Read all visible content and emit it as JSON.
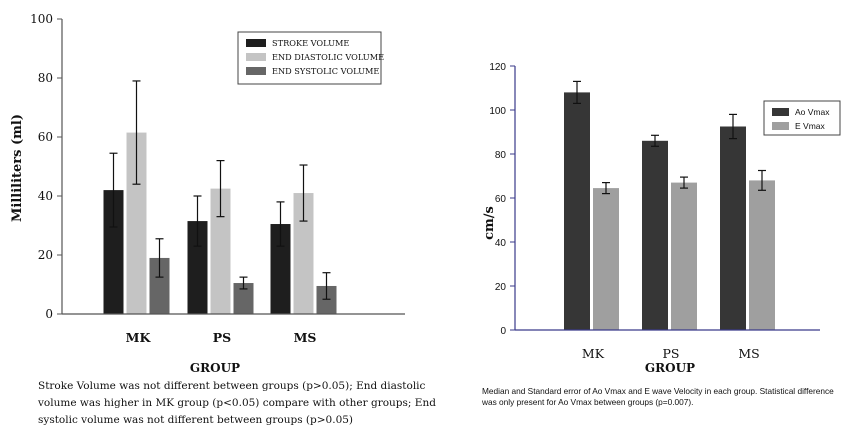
{
  "colors": {
    "stroke_volume": "#1e1e1e",
    "end_diastolic": "#c4c4c4",
    "end_systolic": "#666666",
    "ao_vmax": "#363636",
    "e_vmax": "#9f9f9f",
    "axis": "#555555",
    "axis_right": "#3a3a8a"
  },
  "captions": {
    "left": "Stroke Volume was not different between groups (p>0.05); End diastolic volume was higher in MK group (p<0.05) compare with other groups; End systolic volume was not different between groups (p>0.05)",
    "right": "Median and Standard error of Ao Vmax and E wave Velocity in each group. Statistical difference was only present for Ao Vmax between groups (p=0.007)."
  },
  "chart_data": [
    {
      "type": "bar",
      "title": "",
      "xlabel": "GROUP",
      "ylabel": "Milliliters (ml)",
      "ylim": [
        0,
        100
      ],
      "yticks": [
        0,
        20,
        40,
        60,
        80,
        100
      ],
      "categories": [
        "MK",
        "PS",
        "MS"
      ],
      "legend_position": "top-right",
      "grid": false,
      "series": [
        {
          "name": "STROKE VOLUME",
          "color_key": "stroke_volume",
          "values": [
            42,
            31.5,
            30.5
          ],
          "errors": [
            12.5,
            8.5,
            7.5
          ]
        },
        {
          "name": "END DIASTOLIC VOLUME",
          "color_key": "end_diastolic",
          "values": [
            61.5,
            42.5,
            41
          ],
          "errors": [
            17.5,
            9.5,
            9.5
          ]
        },
        {
          "name": "END SYSTOLIC VOLUME",
          "color_key": "end_systolic",
          "values": [
            19,
            10.5,
            9.5
          ],
          "errors": [
            6.5,
            2,
            4.5
          ]
        }
      ]
    },
    {
      "type": "bar",
      "title": "",
      "xlabel": "GROUP",
      "ylabel": "cm/s",
      "ylim": [
        0,
        120
      ],
      "yticks": [
        0,
        20,
        40,
        60,
        80,
        100,
        120
      ],
      "categories": [
        "MK",
        "PS",
        "MS"
      ],
      "legend_position": "top-right",
      "grid": false,
      "series": [
        {
          "name": "Ao Vmax",
          "color_key": "ao_vmax",
          "values": [
            108,
            86,
            92.5
          ],
          "errors": [
            5,
            2.5,
            5.5
          ]
        },
        {
          "name": "E Vmax",
          "color_key": "e_vmax",
          "values": [
            64.5,
            67,
            68
          ],
          "errors": [
            2.5,
            2.5,
            4.5
          ]
        }
      ]
    }
  ]
}
